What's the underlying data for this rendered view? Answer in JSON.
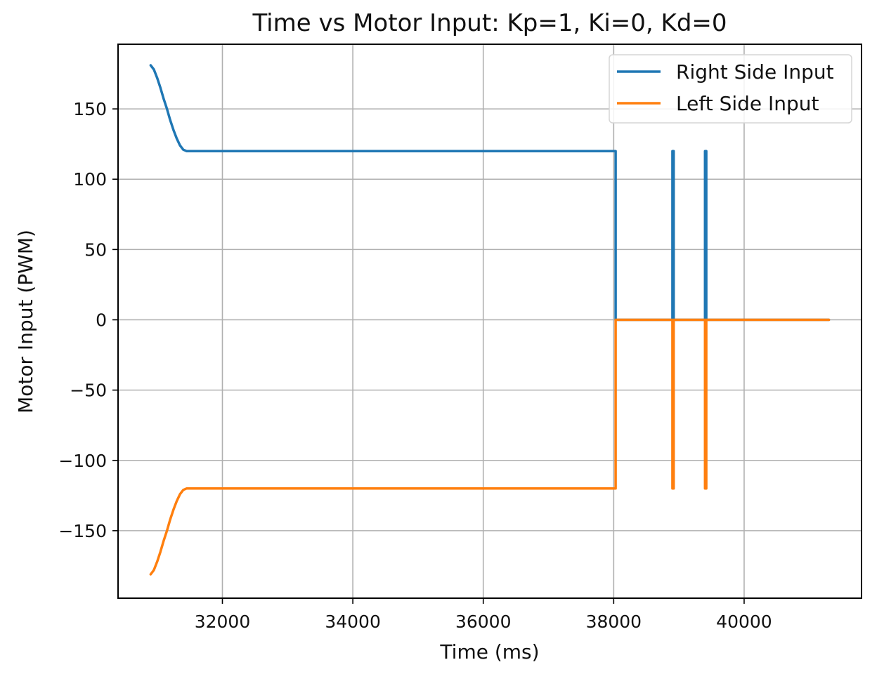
{
  "chart_data": {
    "type": "line",
    "title": "Time vs Motor Input: Kp=1, Ki=0, Kd=0",
    "xlabel": "Time (ms)",
    "ylabel": "Motor Input (PWM)",
    "xlim": [
      30400,
      41800
    ],
    "ylim": [
      -198,
      196
    ],
    "x_ticks": [
      {
        "value": 32000,
        "label": "32000"
      },
      {
        "value": 34000,
        "label": "34000"
      },
      {
        "value": 36000,
        "label": "36000"
      },
      {
        "value": 38000,
        "label": "38000"
      },
      {
        "value": 40000,
        "label": "40000"
      }
    ],
    "y_ticks": [
      {
        "value": 150,
        "label": "150"
      },
      {
        "value": 100,
        "label": "100"
      },
      {
        "value": 50,
        "label": "50"
      },
      {
        "value": 0,
        "label": "0"
      },
      {
        "value": -50,
        "label": "−50"
      },
      {
        "value": -100,
        "label": "−100"
      },
      {
        "value": -150,
        "label": "−150"
      }
    ],
    "grid": true,
    "legend_position": "top-right",
    "series": [
      {
        "name": "Right Side Input",
        "color": "#1f77b4",
        "x": [
          30900,
          30950,
          31000,
          31050,
          31100,
          31150,
          31200,
          31250,
          31300,
          31350,
          31400,
          31450,
          31500,
          31550,
          31600,
          32000,
          33000,
          34000,
          35000,
          36000,
          37000,
          38000,
          38030,
          38030,
          38040,
          38050,
          38900,
          38900,
          38920,
          38920,
          39400,
          39400,
          39420,
          39420,
          41300
        ],
        "y": [
          181,
          178,
          172,
          165,
          157,
          150,
          142,
          135,
          129,
          124,
          121,
          120,
          120,
          120,
          120,
          120,
          120,
          120,
          120,
          120,
          120,
          120,
          120,
          0,
          0,
          0,
          0,
          120,
          120,
          0,
          0,
          120,
          120,
          0,
          0
        ]
      },
      {
        "name": "Left Side Input",
        "color": "#ff7f0e",
        "x": [
          30900,
          30950,
          31000,
          31050,
          31100,
          31150,
          31200,
          31250,
          31300,
          31350,
          31400,
          31450,
          31500,
          31550,
          31600,
          32000,
          33000,
          34000,
          35000,
          36000,
          37000,
          38000,
          38030,
          38030,
          38040,
          38050,
          38900,
          38900,
          38920,
          38920,
          39400,
          39400,
          39420,
          39420,
          41300
        ],
        "y": [
          -181,
          -178,
          -172,
          -165,
          -157,
          -150,
          -142,
          -135,
          -129,
          -124,
          -121,
          -120,
          -120,
          -120,
          -120,
          -120,
          -120,
          -120,
          -120,
          -120,
          -120,
          -120,
          -120,
          0,
          0,
          0,
          0,
          -120,
          -120,
          0,
          0,
          -120,
          -120,
          0,
          0
        ]
      }
    ]
  }
}
